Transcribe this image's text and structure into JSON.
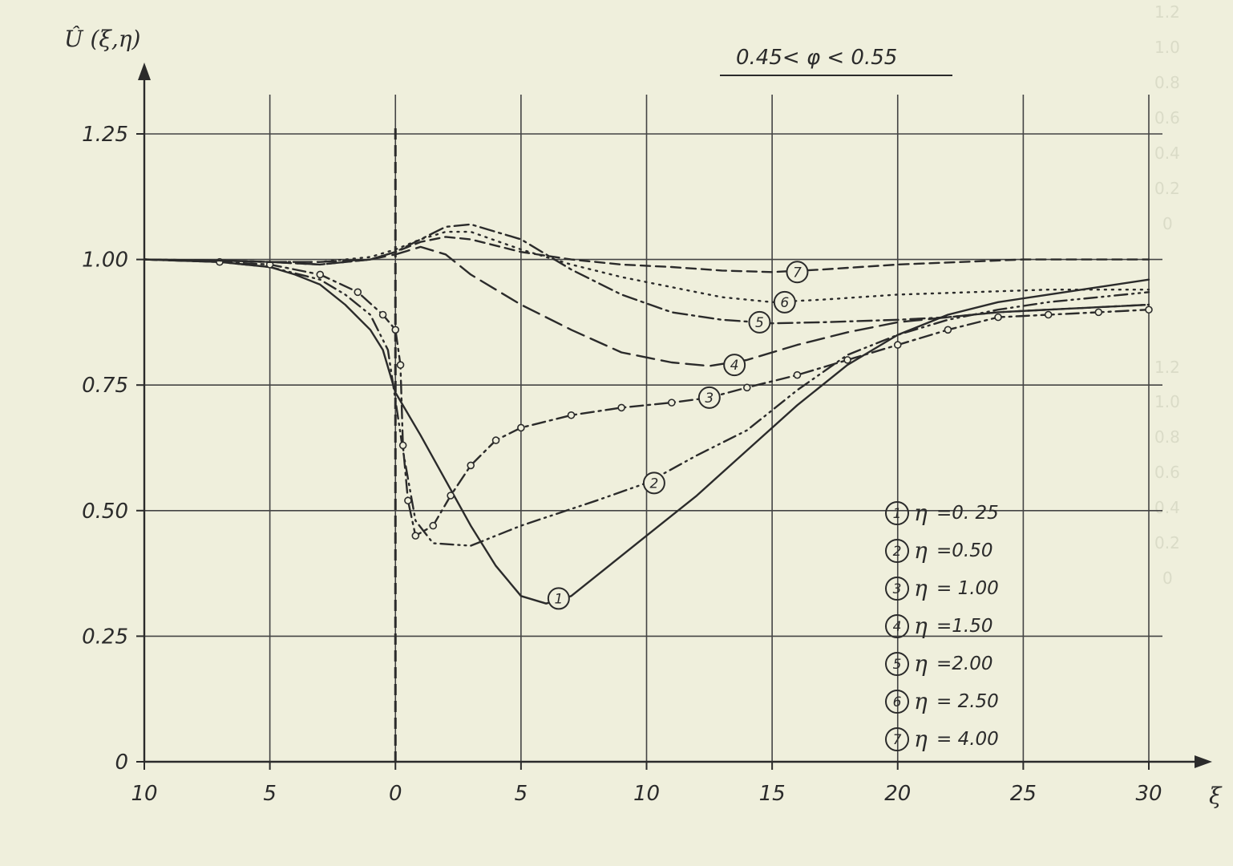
{
  "chart_data": {
    "type": "line",
    "ylabel": "Û (ξ,η)",
    "xlabel": "ξ",
    "condition": "0.45< φ < 0.55",
    "xlim": [
      -10,
      30
    ],
    "ylim": [
      0,
      1.25
    ],
    "x_ticks": [
      -10,
      -5,
      0,
      5,
      10,
      15,
      20,
      25,
      30
    ],
    "x_tick_labels": [
      "10",
      "5",
      "0",
      "5",
      "10",
      "15",
      "20",
      "25",
      "30"
    ],
    "y_ticks": [
      0,
      0.25,
      0.5,
      0.75,
      1.0,
      1.25
    ],
    "y_tick_labels": [
      "0",
      "0.25",
      "0.50",
      "0.75",
      "1.00",
      "1.25"
    ],
    "grid": true,
    "reference_line_x": 0,
    "legend_position": "lower-right",
    "series": [
      {
        "name": "η =0. 25",
        "marker_number": "1",
        "style": "solid",
        "label_at": [
          6.5,
          0.325
        ],
        "points": [
          [
            -10,
            1.0
          ],
          [
            -7,
            0.995
          ],
          [
            -5,
            0.985
          ],
          [
            -4,
            0.97
          ],
          [
            -3,
            0.95
          ],
          [
            -2,
            0.91
          ],
          [
            -1,
            0.86
          ],
          [
            -0.5,
            0.82
          ],
          [
            0,
            0.735
          ],
          [
            1,
            0.65
          ],
          [
            2,
            0.56
          ],
          [
            3,
            0.47
          ],
          [
            4,
            0.39
          ],
          [
            5,
            0.33
          ],
          [
            6,
            0.315
          ],
          [
            7,
            0.33
          ],
          [
            8,
            0.37
          ],
          [
            10,
            0.45
          ],
          [
            12,
            0.53
          ],
          [
            14,
            0.62
          ],
          [
            16,
            0.71
          ],
          [
            18,
            0.79
          ],
          [
            20,
            0.85
          ],
          [
            22,
            0.89
          ],
          [
            24,
            0.915
          ],
          [
            26,
            0.93
          ],
          [
            28,
            0.945
          ],
          [
            30,
            0.96
          ]
        ]
      },
      {
        "name": "η =0.50",
        "marker_number": "2",
        "style": "dash-dot-dot",
        "label_at": [
          10.3,
          0.555
        ],
        "points": [
          [
            -10,
            1.0
          ],
          [
            -7,
            0.995
          ],
          [
            -5,
            0.985
          ],
          [
            -3,
            0.96
          ],
          [
            -2,
            0.93
          ],
          [
            -1,
            0.89
          ],
          [
            -0.3,
            0.82
          ],
          [
            0.3,
            0.62
          ],
          [
            0.8,
            0.48
          ],
          [
            1.5,
            0.435
          ],
          [
            3,
            0.43
          ],
          [
            5,
            0.47
          ],
          [
            8,
            0.52
          ],
          [
            10,
            0.555
          ],
          [
            12,
            0.61
          ],
          [
            14,
            0.66
          ],
          [
            16,
            0.74
          ],
          [
            18,
            0.81
          ],
          [
            20,
            0.85
          ],
          [
            22,
            0.88
          ],
          [
            24,
            0.9
          ],
          [
            26,
            0.915
          ],
          [
            28,
            0.925
          ],
          [
            30,
            0.935
          ]
        ]
      },
      {
        "name": "η = 1.00",
        "marker_number": "3",
        "style": "dash-dot with circles",
        "label_at": [
          12.5,
          0.725
        ],
        "points": [
          [
            -10,
            1.0
          ],
          [
            -7,
            0.995
          ],
          [
            -5,
            0.99
          ],
          [
            -3,
            0.97
          ],
          [
            -1.5,
            0.935
          ],
          [
            -0.5,
            0.89
          ],
          [
            0,
            0.86
          ],
          [
            0.2,
            0.79
          ],
          [
            0.3,
            0.63
          ],
          [
            0.5,
            0.52
          ],
          [
            0.8,
            0.45
          ],
          [
            1.5,
            0.47
          ],
          [
            2.2,
            0.53
          ],
          [
            3,
            0.59
          ],
          [
            4,
            0.64
          ],
          [
            5,
            0.665
          ],
          [
            7,
            0.69
          ],
          [
            9,
            0.705
          ],
          [
            11,
            0.715
          ],
          [
            12.5,
            0.725
          ],
          [
            14,
            0.745
          ],
          [
            16,
            0.77
          ],
          [
            18,
            0.8
          ],
          [
            20,
            0.83
          ],
          [
            22,
            0.86
          ],
          [
            24,
            0.885
          ],
          [
            26,
            0.89
          ],
          [
            28,
            0.895
          ],
          [
            30,
            0.9
          ]
        ]
      },
      {
        "name": "η =1.50",
        "marker_number": "4",
        "style": "long dash",
        "label_at": [
          13.5,
          0.79
        ],
        "points": [
          [
            -10,
            1.0
          ],
          [
            -7,
            0.998
          ],
          [
            -5,
            0.995
          ],
          [
            -3,
            0.995
          ],
          [
            -1,
            1.0
          ],
          [
            0,
            1.01
          ],
          [
            1,
            1.025
          ],
          [
            2,
            1.01
          ],
          [
            3,
            0.97
          ],
          [
            5,
            0.91
          ],
          [
            7,
            0.86
          ],
          [
            9,
            0.815
          ],
          [
            11,
            0.795
          ],
          [
            12.5,
            0.788
          ],
          [
            14,
            0.8
          ],
          [
            16,
            0.83
          ],
          [
            18,
            0.855
          ],
          [
            20,
            0.875
          ],
          [
            22,
            0.885
          ],
          [
            24,
            0.895
          ],
          [
            26,
            0.9
          ],
          [
            28,
            0.905
          ],
          [
            30,
            0.91
          ]
        ]
      },
      {
        "name": "η =2.00",
        "marker_number": "5",
        "style": "dash-dot",
        "label_at": [
          14.5,
          0.875
        ],
        "points": [
          [
            -10,
            1.0
          ],
          [
            -7,
            0.998
          ],
          [
            -5,
            0.995
          ],
          [
            -3,
            0.99
          ],
          [
            -1,
            1.0
          ],
          [
            0,
            1.015
          ],
          [
            1,
            1.04
          ],
          [
            2,
            1.065
          ],
          [
            3,
            1.07
          ],
          [
            5,
            1.04
          ],
          [
            7,
            0.98
          ],
          [
            9,
            0.93
          ],
          [
            11,
            0.895
          ],
          [
            13,
            0.88
          ],
          [
            15,
            0.873
          ],
          [
            17,
            0.875
          ],
          [
            20,
            0.88
          ],
          [
            22,
            0.885
          ],
          [
            24,
            0.895
          ],
          [
            26,
            0.9
          ],
          [
            28,
            0.905
          ],
          [
            30,
            0.91
          ]
        ]
      },
      {
        "name": "η = 2.50",
        "marker_number": "6",
        "style": "dotted",
        "label_at": [
          15.5,
          0.915
        ],
        "points": [
          [
            -10,
            1.0
          ],
          [
            -7,
            0.998
          ],
          [
            -5,
            0.995
          ],
          [
            -3,
            0.995
          ],
          [
            -1,
            1.005
          ],
          [
            0,
            1.02
          ],
          [
            1,
            1.04
          ],
          [
            2,
            1.055
          ],
          [
            3,
            1.055
          ],
          [
            5,
            1.02
          ],
          [
            7,
            0.99
          ],
          [
            9,
            0.965
          ],
          [
            11,
            0.945
          ],
          [
            13,
            0.925
          ],
          [
            15,
            0.915
          ],
          [
            17,
            0.92
          ],
          [
            20,
            0.93
          ],
          [
            23,
            0.935
          ],
          [
            26,
            0.94
          ],
          [
            28,
            0.94
          ],
          [
            30,
            0.94
          ]
        ]
      },
      {
        "name": "η = 4.00",
        "marker_number": "7",
        "style": "short dash",
        "label_at": [
          16,
          0.975
        ],
        "points": [
          [
            -10,
            1.0
          ],
          [
            -7,
            0.998
          ],
          [
            -5,
            0.995
          ],
          [
            -3,
            0.99
          ],
          [
            -1,
            1.0
          ],
          [
            0,
            1.015
          ],
          [
            1,
            1.035
          ],
          [
            2,
            1.045
          ],
          [
            3,
            1.04
          ],
          [
            5,
            1.015
          ],
          [
            7,
            1.0
          ],
          [
            9,
            0.99
          ],
          [
            11,
            0.985
          ],
          [
            13,
            0.978
          ],
          [
            15,
            0.975
          ],
          [
            17,
            0.98
          ],
          [
            20,
            0.99
          ],
          [
            25,
            1.0
          ],
          [
            30,
            1.0
          ]
        ]
      }
    ]
  }
}
